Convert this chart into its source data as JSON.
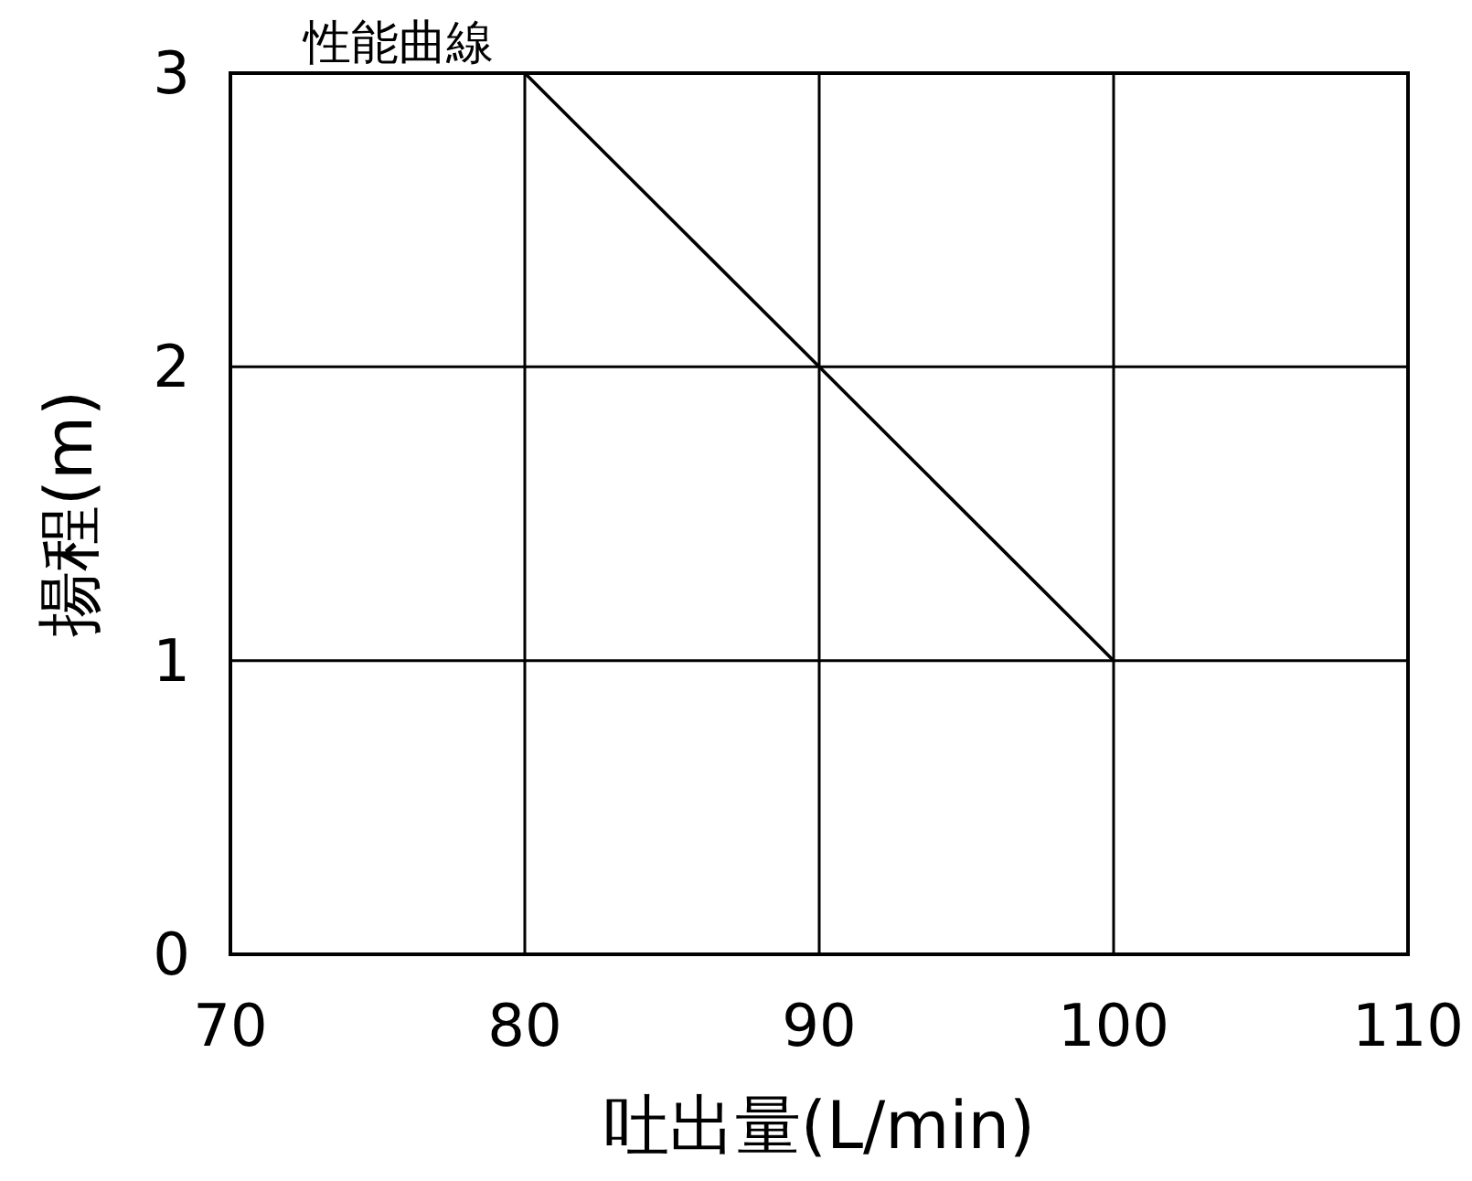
{
  "chart_data": {
    "type": "line",
    "xlabel": "吐出量(L/min)",
    "ylabel": "揚程(m)",
    "annotations": [
      "性能曲線"
    ],
    "x": [
      80,
      90,
      100
    ],
    "series": [
      {
        "color": "#000000",
        "values": [
          3,
          2,
          1
        ]
      }
    ],
    "xlim": [
      70,
      110
    ],
    "ylim": [
      0,
      3
    ],
    "xticks": [
      70,
      80,
      90,
      100,
      110
    ],
    "yticks": [
      0,
      1,
      2,
      3
    ],
    "grid": true,
    "marker": "none",
    "line_style": "solid"
  }
}
